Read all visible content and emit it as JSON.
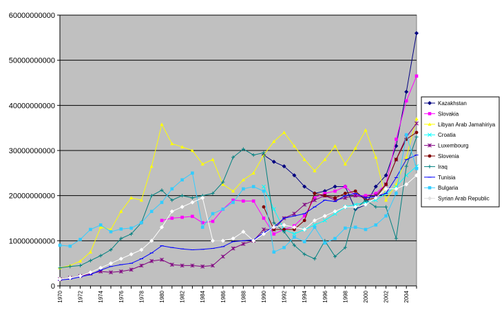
{
  "chart_data": {
    "type": "line",
    "title": "",
    "xlabel": "",
    "ylabel": "",
    "ylim": [
      0,
      60000000000
    ],
    "y_ticks": [
      0,
      10000000000,
      20000000000,
      30000000000,
      40000000000,
      50000000000,
      60000000000
    ],
    "y_tick_labels": [
      "0",
      "10000000000",
      "20000000000",
      "30000000000",
      "40000000000",
      "50000000000",
      "60000000000"
    ],
    "x_tick_labels": [
      "1970",
      "1972",
      "1974",
      "1976",
      "1978",
      "1980",
      "1982",
      "1984",
      "1986",
      "1988",
      "1990",
      "1992",
      "1994",
      "1996",
      "1998",
      "2000",
      "2002",
      "2004"
    ],
    "plot_background": "#c0c0c0",
    "grid": "horizontal",
    "legend_position": "right",
    "x": [
      1970,
      1971,
      1972,
      1973,
      1974,
      1975,
      1976,
      1977,
      1978,
      1979,
      1980,
      1981,
      1982,
      1983,
      1984,
      1985,
      1986,
      1987,
      1988,
      1989,
      1990,
      1991,
      1992,
      1993,
      1994,
      1995,
      1996,
      1997,
      1998,
      1999,
      2000,
      2001,
      2002,
      2003,
      2004,
      2005
    ],
    "series": [
      {
        "name": "Kazakhstan",
        "color": "#000080",
        "marker": "diamond",
        "values": [
          null,
          null,
          null,
          null,
          null,
          null,
          null,
          null,
          null,
          null,
          null,
          null,
          null,
          null,
          null,
          null,
          null,
          null,
          null,
          null,
          29000000000,
          27500000000,
          26500000000,
          24500000000,
          22000000000,
          20500000000,
          21000000000,
          22000000000,
          22000000000,
          17000000000,
          18000000000,
          22000000000,
          24500000000,
          31000000000,
          43000000000,
          56000000000
        ]
      },
      {
        "name": "Slovakia",
        "color": "#ff00ff",
        "marker": "square",
        "values": [
          null,
          null,
          null,
          null,
          null,
          null,
          null,
          null,
          null,
          null,
          14500000000,
          15000000000,
          15200000000,
          15400000000,
          14000000000,
          14300000000,
          17000000000,
          19000000000,
          18800000000,
          18800000000,
          15000000000,
          11500000000,
          12500000000,
          13300000000,
          15500000000,
          19500000000,
          20500000000,
          21000000000,
          22000000000,
          20000000000,
          20000000000,
          20500000000,
          22500000000,
          32500000000,
          41000000000,
          46500000000
        ]
      },
      {
        "name": "Libyan Arab Jamahiriya",
        "color": "#ffff00",
        "marker": "triangle",
        "values": [
          4000000000,
          4500000000,
          5500000000,
          7500000000,
          13000000000,
          12500000000,
          16500000000,
          19500000000,
          19000000000,
          26500000000,
          35800000000,
          31500000000,
          30800000000,
          30000000000,
          27000000000,
          28000000000,
          22500000000,
          21000000000,
          23500000000,
          25000000000,
          29000000000,
          32000000000,
          34000000000,
          31000000000,
          28000000000,
          25500000000,
          28000000000,
          31000000000,
          27000000000,
          30500000000,
          34500000000,
          28500000000,
          19000000000,
          22500000000,
          28500000000,
          37000000000
        ]
      },
      {
        "name": "Croatia",
        "color": "#00ffff",
        "marker": "x",
        "values": [
          null,
          null,
          null,
          null,
          null,
          null,
          null,
          null,
          null,
          null,
          null,
          null,
          null,
          null,
          null,
          null,
          null,
          null,
          null,
          null,
          22000000000,
          17000000000,
          12500000000,
          11500000000,
          12500000000,
          13500000000,
          14500000000,
          16000000000,
          17500000000,
          18000000000,
          18500000000,
          19000000000,
          20500000000,
          22000000000,
          24500000000,
          26500000000
        ]
      },
      {
        "name": "Luxembourg",
        "color": "#800080",
        "marker": "asterisk",
        "values": [
          1500000000,
          1800000000,
          2200000000,
          2700000000,
          3200000000,
          3000000000,
          3200000000,
          3600000000,
          4500000000,
          5500000000,
          5800000000,
          4700000000,
          4500000000,
          4500000000,
          4300000000,
          4500000000,
          6500000000,
          8300000000,
          9300000000,
          10000000000,
          12500000000,
          12500000000,
          15000000000,
          16000000000,
          18000000000,
          19000000000,
          20000000000,
          19000000000,
          19500000000,
          20000000000,
          19500000000,
          20000000000,
          22500000000,
          28000000000,
          33000000000,
          36000000000
        ]
      },
      {
        "name": "Slovenia",
        "color": "#800000",
        "marker": "circle",
        "values": [
          null,
          null,
          null,
          null,
          null,
          null,
          null,
          null,
          null,
          null,
          null,
          null,
          null,
          null,
          null,
          null,
          null,
          null,
          null,
          null,
          17500000000,
          12500000000,
          12500000000,
          12500000000,
          14500000000,
          20500000000,
          20000000000,
          19500000000,
          20500000000,
          21000000000,
          19000000000,
          19500000000,
          22500000000,
          28000000000,
          32500000000,
          34000000000
        ]
      },
      {
        "name": "Iraq",
        "color": "#008080",
        "marker": "plus",
        "values": [
          4000000000,
          4300000000,
          4500000000,
          5600000000,
          6700000000,
          8000000000,
          10500000000,
          11500000000,
          14000000000,
          20000000000,
          21200000000,
          19000000000,
          20000000000,
          19500000000,
          20000000000,
          20500000000,
          23000000000,
          28500000000,
          30300000000,
          29000000000,
          29500000000,
          14000000000,
          12000000000,
          9000000000,
          7000000000,
          6000000000,
          10000000000,
          6500000000,
          8500000000,
          17000000000,
          19000000000,
          17500000000,
          17500000000,
          10500000000,
          26500000000,
          33000000000
        ]
      },
      {
        "name": "Tunisia",
        "color": "#0000ff",
        "marker": "line",
        "values": [
          1300000000,
          1500000000,
          2000000000,
          2500000000,
          3500000000,
          4300000000,
          4700000000,
          5000000000,
          6000000000,
          7300000000,
          8900000000,
          8500000000,
          8200000000,
          8000000000,
          8100000000,
          8300000000,
          8700000000,
          9800000000,
          10000000000,
          10200000000,
          11800000000,
          13000000000,
          15000000000,
          15500000000,
          16000000000,
          17500000000,
          19000000000,
          18700000000,
          20000000000,
          20500000000,
          19500000000,
          19800000000,
          20500000000,
          24000000000,
          28000000000,
          29000000000
        ]
      },
      {
        "name": "Bulgaria",
        "color": "#33ccff",
        "marker": "square",
        "values": [
          9000000000,
          8800000000,
          10300000000,
          12500000000,
          13500000000,
          12000000000,
          12600000000,
          12800000000,
          14000000000,
          16500000000,
          18500000000,
          21500000000,
          23500000000,
          25000000000,
          13000000000,
          16000000000,
          17000000000,
          18500000000,
          21500000000,
          22000000000,
          21000000000,
          7500000000,
          8500000000,
          10800000000,
          9800000000,
          13000000000,
          9500000000,
          10500000000,
          12800000000,
          13000000000,
          12500000000,
          13500000000,
          15500000000,
          20500000000,
          33500000000,
          26000000000
        ]
      },
      {
        "name": "Syrian Arab Republic",
        "color": "#ffffff",
        "marker": "diamond",
        "values": [
          1500000000,
          1800000000,
          2200000000,
          3000000000,
          4000000000,
          5000000000,
          6000000000,
          7000000000,
          8000000000,
          10000000000,
          13000000000,
          16500000000,
          17500000000,
          18500000000,
          19500000000,
          10000000000,
          10000000000,
          10500000000,
          12000000000,
          10000000000,
          11500000000,
          13000000000,
          13500000000,
          13000000000,
          12500000000,
          14500000000,
          15500000000,
          16500000000,
          17500000000,
          17500000000,
          18000000000,
          19500000000,
          21500000000,
          21500000000,
          22500000000,
          24500000000
        ]
      }
    ]
  }
}
